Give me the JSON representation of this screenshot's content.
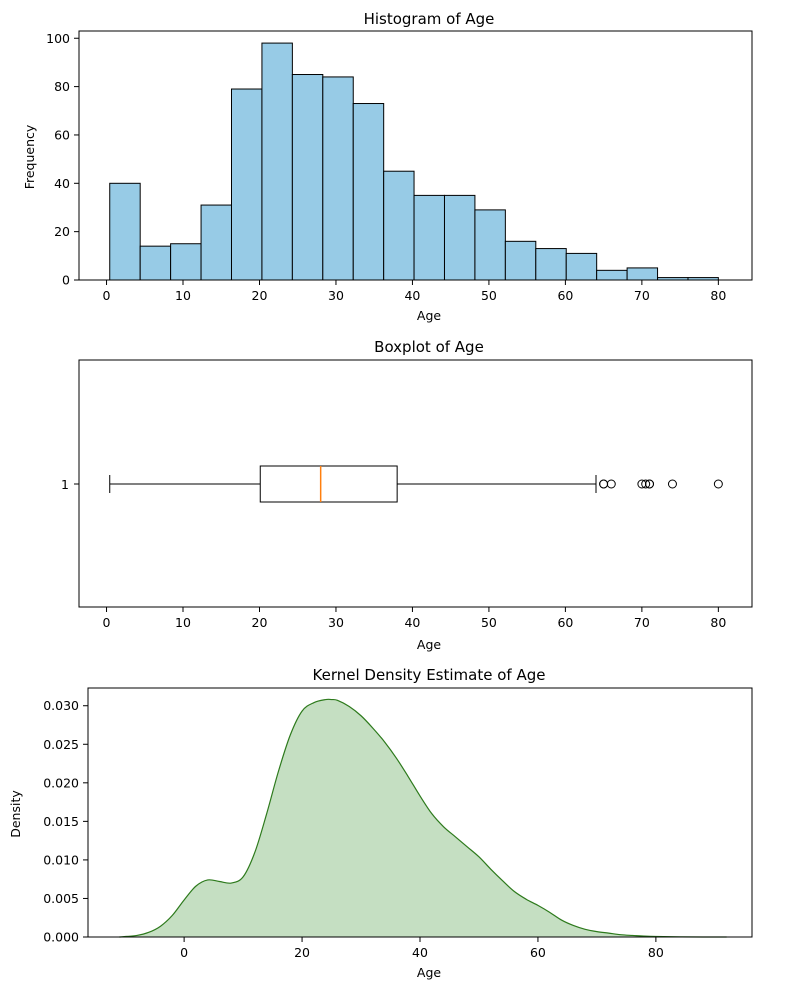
{
  "chart_data": [
    {
      "type": "bar",
      "subtype": "histogram",
      "title": "Histogram of Age",
      "xlabel": "Age",
      "ylabel": "Frequency",
      "xlim": [
        -3.6,
        84.4
      ],
      "ylim": [
        0,
        103
      ],
      "xticks": [
        0,
        10,
        20,
        30,
        40,
        50,
        60,
        70,
        80
      ],
      "yticks": [
        0,
        20,
        40,
        60,
        80,
        100
      ],
      "bin_edges": [
        0.42,
        4.4,
        8.38,
        12.36,
        16.34,
        20.32,
        24.3,
        28.28,
        32.26,
        36.24,
        40.21,
        44.19,
        48.17,
        52.15,
        56.13,
        60.11,
        64.09,
        68.07,
        72.05,
        76.03,
        80.0
      ],
      "values": [
        40,
        14,
        15,
        31,
        79,
        98,
        85,
        84,
        73,
        45,
        35,
        35,
        29,
        16,
        13,
        11,
        4,
        5,
        1,
        1
      ],
      "fill_color": "#97cbe6",
      "edge_color": "#000000"
    },
    {
      "type": "boxplot",
      "title": "Boxplot of Age",
      "xlabel": "Age",
      "xlim": [
        -3.6,
        84.4
      ],
      "xticks": [
        0,
        10,
        20,
        30,
        40,
        50,
        60,
        70,
        80
      ],
      "ytick_label": "1",
      "whisker_low": 0.42,
      "q1": 20.1,
      "median": 28.0,
      "q3": 38.0,
      "whisker_high": 64.0,
      "outliers": [
        65,
        65,
        66,
        70,
        70.5,
        71,
        71,
        74,
        80
      ],
      "median_color": "#ff7f0e"
    },
    {
      "type": "area",
      "subtype": "kde",
      "title": "Kernel Density Estimate of Age",
      "xlabel": "Age",
      "ylabel": "Density",
      "xlim": [
        -16.3,
        96.3
      ],
      "ylim": [
        0,
        0.0323
      ],
      "xticks": [
        0,
        20,
        40,
        60,
        80
      ],
      "yticks": [
        0.0,
        0.005,
        0.01,
        0.015,
        0.02,
        0.025,
        0.03
      ],
      "ytick_labels": [
        "0.000",
        "0.005",
        "0.010",
        "0.015",
        "0.020",
        "0.025",
        "0.030"
      ],
      "x": [
        -11,
        -8,
        -6,
        -4,
        -2,
        0,
        2,
        4,
        6,
        8,
        10,
        12,
        14,
        16,
        18,
        20,
        22,
        24,
        25,
        26,
        28,
        30,
        32,
        34,
        36,
        38,
        40,
        42,
        44,
        46,
        48,
        50,
        52,
        54,
        56,
        58,
        60,
        62,
        64,
        66,
        68,
        70,
        72,
        74,
        76,
        78,
        80,
        84,
        88,
        92
      ],
      "y": [
        0.0,
        0.0002,
        0.0006,
        0.0014,
        0.0028,
        0.0048,
        0.0066,
        0.0074,
        0.0072,
        0.007,
        0.0078,
        0.011,
        0.016,
        0.0215,
        0.0262,
        0.0293,
        0.0304,
        0.0308,
        0.0308,
        0.0307,
        0.0299,
        0.0287,
        0.0271,
        0.0253,
        0.0232,
        0.0208,
        0.0183,
        0.016,
        0.0143,
        0.013,
        0.0117,
        0.0104,
        0.0088,
        0.0073,
        0.0059,
        0.0049,
        0.0041,
        0.0032,
        0.0022,
        0.0015,
        0.001,
        0.0007,
        0.0005,
        0.0003,
        0.0002,
        0.00012,
        7e-05,
        2e-05,
        0.0,
        0.0
      ],
      "line_color": "#2d7a1c",
      "fill_color": "#c5dfc2"
    }
  ]
}
